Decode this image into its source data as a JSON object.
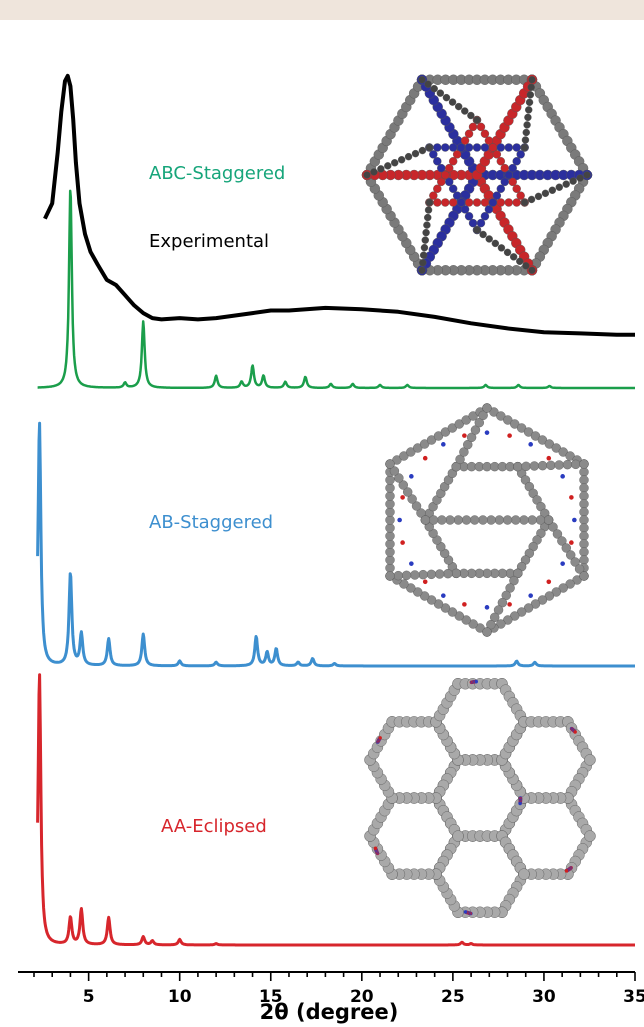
{
  "colors": {
    "experimental": "#000000",
    "abc": "#1b9e4b",
    "ab": "#3d8fcf",
    "aa": "#d7262c",
    "band": "#efe5dc",
    "abc_label": "#16a57a"
  },
  "chart_data": {
    "type": "line",
    "title": "",
    "xlabel": "2θ (degree)",
    "ylabel": "",
    "xlim": [
      2,
      35
    ],
    "xticks": [
      5,
      10,
      15,
      20,
      25,
      30,
      35
    ],
    "grid": false,
    "legend": "none; series labelled inline",
    "series": [
      {
        "name": "Experimental",
        "color": "#000000",
        "description_points_x": [
          2.6,
          3.0,
          3.3,
          3.5,
          3.7,
          3.85,
          4.0,
          4.15,
          4.3,
          4.5,
          4.8,
          5.1,
          5.5,
          6.0,
          6.5,
          7.0,
          7.5,
          8.0,
          8.5,
          9.0,
          10.0,
          11.0,
          12.0,
          13.0,
          14.0,
          15.0,
          16.0,
          18.0,
          20.0,
          22.0,
          24.0,
          26.0,
          28.0,
          30.0,
          32.0,
          34.0,
          35.0
        ],
        "description_points_y": [
          0.46,
          0.52,
          0.72,
          0.88,
          1.0,
          1.02,
          0.98,
          0.85,
          0.68,
          0.52,
          0.4,
          0.33,
          0.28,
          0.22,
          0.2,
          0.16,
          0.12,
          0.09,
          0.07,
          0.065,
          0.07,
          0.065,
          0.07,
          0.08,
          0.09,
          0.1,
          0.1,
          0.11,
          0.105,
          0.095,
          0.075,
          0.05,
          0.03,
          0.015,
          0.01,
          0.005,
          0.005
        ]
      },
      {
        "name": "ABC-Staggered",
        "color": "#1b9e4b",
        "peaks_x": [
          4.0,
          7.0,
          8.0,
          12.0,
          13.4,
          14.0,
          14.6,
          15.8,
          16.9,
          18.3,
          19.5,
          21.0,
          22.5,
          26.8,
          28.6,
          30.3
        ],
        "peaks_y": [
          1.0,
          0.025,
          0.33,
          0.06,
          0.03,
          0.11,
          0.06,
          0.03,
          0.055,
          0.02,
          0.02,
          0.015,
          0.015,
          0.015,
          0.015,
          0.01
        ]
      },
      {
        "name": "AB-Staggered",
        "color": "#3d8fcf",
        "peaks_x": [
          2.3,
          4.0,
          4.6,
          6.1,
          8.0,
          10.0,
          12.0,
          14.2,
          14.8,
          15.3,
          16.5,
          17.3,
          18.5,
          28.5,
          29.5
        ],
        "peaks_y": [
          1.0,
          0.38,
          0.13,
          0.11,
          0.13,
          0.02,
          0.015,
          0.12,
          0.055,
          0.07,
          0.015,
          0.03,
          0.01,
          0.02,
          0.015
        ]
      },
      {
        "name": "AA-Eclipsed",
        "color": "#d7262c",
        "peaks_x": [
          2.3,
          4.0,
          4.6,
          6.1,
          8.0,
          8.5,
          10.0,
          12.0,
          25.5,
          26.0
        ],
        "peaks_y": [
          1.0,
          0.1,
          0.13,
          0.1,
          0.03,
          0.015,
          0.02,
          0.005,
          0.01,
          0.005
        ]
      }
    ]
  },
  "labels": {
    "experimental": "Experimental",
    "abc": "ABC-Staggered",
    "ab": "AB-Staggered",
    "aa": "AA-Eclipsed"
  },
  "insets": {
    "abc": "ABC stacking structure model (red/blue)",
    "ab": "AB stacking structure model (grey/red/blue)",
    "aa": "AA stacking honeycomb structure model (grey/red/blue)"
  }
}
